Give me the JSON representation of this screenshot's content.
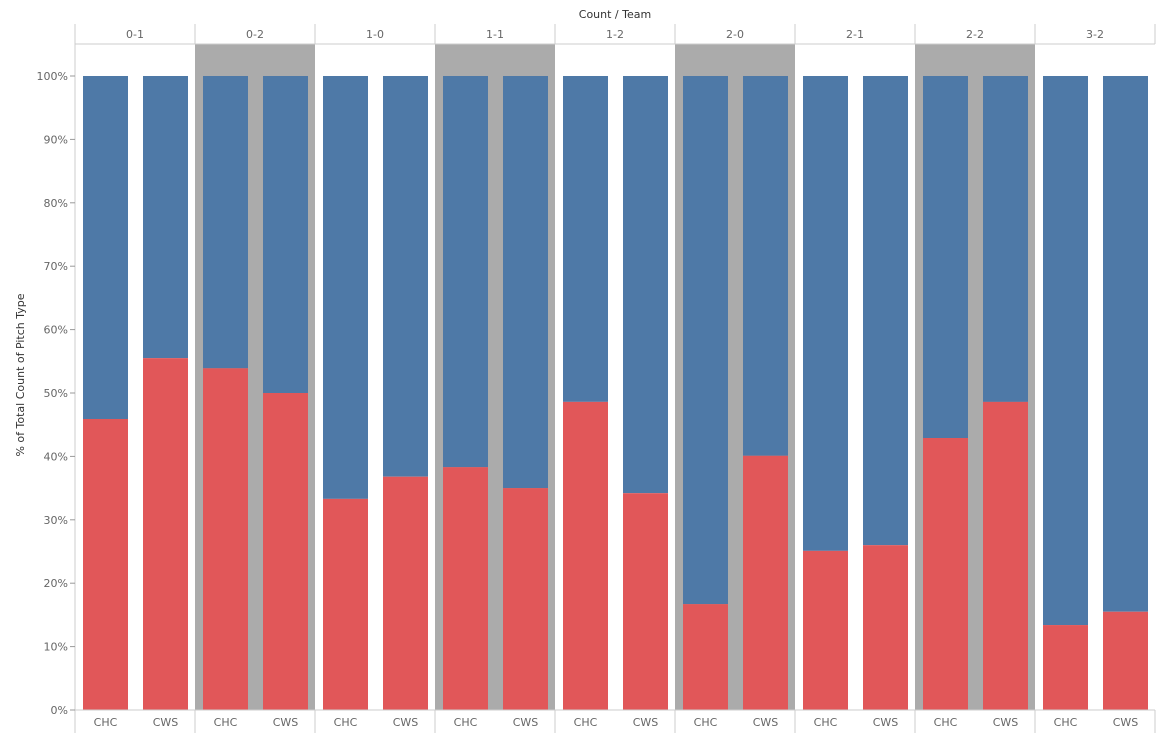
{
  "chart_data": {
    "type": "bar",
    "stacked": "100%",
    "title": "Count / Team",
    "xlabel": "",
    "ylabel": "% of Total Count of Pitch Type",
    "ylim": [
      0,
      100
    ],
    "y_ticks": [
      "0%",
      "10%",
      "20%",
      "30%",
      "40%",
      "50%",
      "60%",
      "70%",
      "80%",
      "90%",
      "100%"
    ],
    "panes": [
      "0-1",
      "0-2",
      "1-0",
      "1-1",
      "1-2",
      "2-0",
      "2-1",
      "2-2",
      "3-2"
    ],
    "highlighted_panes": [
      "0-2",
      "1-1",
      "2-0",
      "2-2"
    ],
    "teams": [
      "CHC",
      "CWS"
    ],
    "series": [
      {
        "name": "red",
        "color": "#e15759",
        "values": {
          "0-1": [
            45.9,
            55.5
          ],
          "0-2": [
            53.9,
            50.0
          ],
          "1-0": [
            33.3,
            36.8
          ],
          "1-1": [
            38.3,
            35.0
          ],
          "1-2": [
            48.6,
            34.2
          ],
          "2-0": [
            16.7,
            40.1
          ],
          "2-1": [
            25.1,
            26.0
          ],
          "2-2": [
            42.9,
            48.6
          ],
          "3-2": [
            13.4,
            15.5
          ]
        }
      },
      {
        "name": "blue",
        "color": "#4e79a7",
        "values": "remainder to 100%"
      }
    ],
    "grid": false,
    "legend": "none"
  },
  "colors": {
    "red": "#e15759",
    "blue": "#4e79a7",
    "band": "#ababab",
    "axis": "#cccccc"
  }
}
